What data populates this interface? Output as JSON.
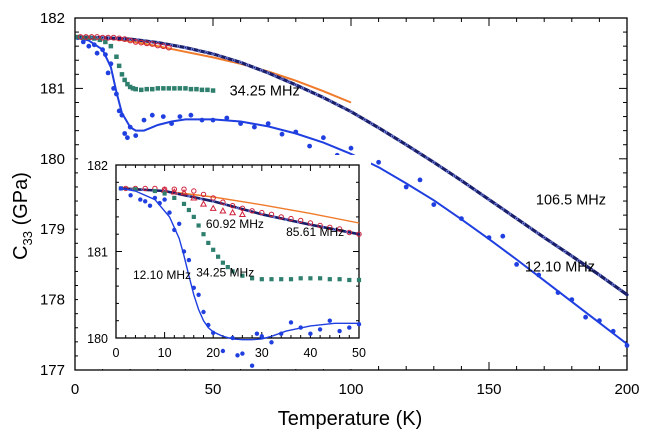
{
  "chart_data": {
    "type": "line",
    "xlabel": "Temperature (K)",
    "ylabel_main": "C",
    "ylabel_sub": "33",
    "ylabel_unit": " (GPa)",
    "xlim": [
      0,
      200
    ],
    "ylim": [
      177,
      182
    ],
    "x_ticks": [
      "0",
      "50",
      "100",
      "150",
      "200"
    ],
    "y_ticks": [
      "177",
      "178",
      "179",
      "180",
      "181",
      "182"
    ],
    "colors": {
      "fit_orange": "#f07a2a",
      "dark_navy": "#1a1f6a",
      "blue": "#1f3fe0",
      "teal": "#2e7f6e",
      "red": "#d0203a"
    },
    "annotations": [
      {
        "text": "106.5 MHz",
        "x": 167,
        "y": 179.35
      },
      {
        "text": "34.25 MHz",
        "x": 56,
        "y": 180.9
      },
      {
        "text": "12.10 MHz",
        "x": 163,
        "y": 178.4
      }
    ],
    "series": [
      {
        "name": "fit (orange)",
        "kind": "line",
        "color": "#f07a2a",
        "x": [
          1,
          10,
          20,
          30,
          40,
          50,
          60,
          70,
          80,
          90,
          100
        ],
        "y": [
          181.74,
          181.72,
          181.67,
          181.6,
          181.52,
          181.44,
          181.35,
          181.24,
          181.11,
          180.96,
          180.8
        ]
      },
      {
        "name": "106.5 MHz",
        "kind": "dense",
        "color": "#1a1f6a",
        "x": [
          1,
          10,
          20,
          30,
          40,
          50,
          60,
          70,
          80,
          90,
          100,
          110,
          120,
          130,
          140,
          150,
          160,
          170,
          180,
          190,
          200
        ],
        "y": [
          181.73,
          181.72,
          181.7,
          181.65,
          181.58,
          181.49,
          181.37,
          181.22,
          181.05,
          180.87,
          180.67,
          180.44,
          180.2,
          179.95,
          179.69,
          179.42,
          179.15,
          178.88,
          178.62,
          178.35,
          178.07
        ]
      },
      {
        "name": "12.10 MHz fit",
        "kind": "line",
        "color": "#1f3fe0",
        "x": [
          1,
          5,
          10,
          13,
          15,
          17,
          20,
          22,
          25,
          30,
          35,
          40,
          50,
          60,
          70,
          80,
          90,
          100,
          110,
          120,
          130,
          140,
          150,
          160,
          170,
          180,
          190,
          200
        ],
        "y": [
          181.72,
          181.68,
          181.55,
          181.3,
          180.95,
          180.65,
          180.45,
          180.4,
          180.4,
          180.48,
          180.53,
          180.56,
          180.56,
          180.53,
          180.46,
          180.36,
          180.23,
          180.07,
          179.88,
          179.65,
          179.41,
          179.14,
          178.86,
          178.57,
          178.27,
          177.97,
          177.67,
          177.37
        ]
      },
      {
        "name": "12.10 MHz",
        "kind": "dots",
        "color": "#1f3fe0",
        "x": [
          1,
          3,
          5,
          7,
          8,
          10,
          11,
          12,
          13,
          14,
          15,
          16,
          17,
          18,
          19,
          20,
          22,
          25,
          28,
          32,
          35,
          38,
          42,
          46,
          50,
          55,
          60,
          65,
          70,
          75,
          80,
          85,
          90,
          95,
          100,
          110,
          120,
          125,
          130,
          140,
          150,
          155,
          160,
          168,
          175,
          180,
          185,
          190,
          195,
          200
        ],
        "y": [
          181.72,
          181.66,
          181.6,
          181.62,
          181.5,
          181.55,
          181.48,
          181.22,
          181.35,
          181.0,
          180.92,
          180.68,
          180.62,
          180.36,
          180.3,
          180.45,
          180.33,
          180.55,
          180.62,
          180.6,
          180.5,
          180.6,
          180.62,
          180.55,
          180.55,
          180.58,
          180.5,
          180.45,
          180.5,
          180.35,
          180.38,
          180.18,
          180.3,
          180.05,
          180.15,
          179.95,
          179.6,
          179.7,
          179.35,
          179.15,
          178.88,
          178.9,
          178.5,
          178.35,
          178.1,
          178.0,
          177.75,
          177.7,
          177.55,
          177.35
        ]
      },
      {
        "name": "34.25 MHz",
        "kind": "squares",
        "color": "#2e7f6e",
        "x": [
          1,
          3,
          5,
          7,
          9,
          11,
          13,
          15,
          16,
          17,
          18,
          19,
          20,
          21,
          22,
          24,
          26,
          28,
          30,
          32,
          34,
          36,
          38,
          40,
          42,
          44,
          46,
          48,
          50
        ],
        "y": [
          181.73,
          181.72,
          181.72,
          181.71,
          181.69,
          181.66,
          181.6,
          181.45,
          181.32,
          181.2,
          181.12,
          181.06,
          181.02,
          181.0,
          180.99,
          180.98,
          180.99,
          180.99,
          181.0,
          181.0,
          181.0,
          181.0,
          181.0,
          181.0,
          180.99,
          180.99,
          180.98,
          180.98,
          180.97
        ]
      },
      {
        "name": "85.61 MHz",
        "kind": "open-circles",
        "color": "#d0203a",
        "x": [
          2,
          4,
          6,
          8,
          10,
          12,
          14,
          16,
          18,
          20,
          22,
          24,
          26,
          28,
          30,
          32,
          34
        ],
        "y": [
          181.73,
          181.73,
          181.73,
          181.73,
          181.72,
          181.72,
          181.72,
          181.71,
          181.7,
          181.68,
          181.66,
          181.65,
          181.64,
          181.63,
          181.61,
          181.6,
          181.58
        ]
      }
    ],
    "inset": {
      "xlim": [
        0,
        50
      ],
      "ylim": [
        180,
        182
      ],
      "x_ticks": [
        "0",
        "10",
        "20",
        "30",
        "40",
        "50"
      ],
      "y_ticks": [
        "180",
        "181",
        "182"
      ],
      "annotations": [
        {
          "text": "60.92 MHz",
          "x": 18.5,
          "y": 181.27
        },
        {
          "text": "85.61 MHz",
          "x": 35,
          "y": 181.18
        },
        {
          "text": "34.25 MHz",
          "x": 16.5,
          "y": 180.71
        },
        {
          "text": "12.10 MHz",
          "x": 3.5,
          "y": 180.68
        }
      ],
      "series": [
        {
          "name": "fit (orange)",
          "kind": "line",
          "color": "#f07a2a",
          "x": [
            1,
            10,
            20,
            30,
            40,
            50
          ],
          "y": [
            181.74,
            181.7,
            181.63,
            181.54,
            181.44,
            181.33
          ]
        },
        {
          "name": "106.5 MHz",
          "kind": "dense",
          "color": "#1a1f6a",
          "x": [
            1,
            10,
            20,
            30,
            40,
            50
          ],
          "y": [
            181.73,
            181.7,
            181.58,
            181.43,
            181.31,
            181.2
          ]
        },
        {
          "name": "85.61 MHz",
          "kind": "open-circles",
          "color": "#d0203a",
          "x": [
            2,
            4,
            6,
            8,
            10,
            12,
            14,
            16,
            18,
            20,
            22,
            24,
            26,
            28,
            30,
            32,
            34,
            36,
            38,
            40,
            42,
            44,
            46,
            48,
            50
          ],
          "y": [
            181.73,
            181.73,
            181.73,
            181.73,
            181.72,
            181.72,
            181.72,
            181.7,
            181.66,
            181.62,
            181.57,
            181.53,
            181.5,
            181.47,
            181.45,
            181.43,
            181.4,
            181.38,
            181.36,
            181.33,
            181.3,
            181.28,
            181.26,
            181.22,
            181.2
          ]
        },
        {
          "name": "60.92 MHz",
          "kind": "open-triangles",
          "color": "#d0203a",
          "x": [
            10,
            12,
            14,
            16,
            18,
            20,
            22,
            24,
            26
          ],
          "y": [
            181.71,
            181.69,
            181.68,
            181.62,
            181.55,
            181.5,
            181.47,
            181.45,
            181.43
          ]
        },
        {
          "name": "34.25 MHz",
          "kind": "squares",
          "color": "#2e7f6e",
          "x": [
            1,
            4,
            8,
            10,
            12,
            14,
            15,
            16,
            17,
            18,
            19,
            20,
            21,
            22,
            23,
            24,
            26,
            28,
            30,
            32,
            34,
            36,
            38,
            40,
            42,
            44,
            46,
            48,
            50
          ],
          "y": [
            181.73,
            181.72,
            181.7,
            181.67,
            181.62,
            181.55,
            181.48,
            181.4,
            181.3,
            181.2,
            181.1,
            181.02,
            180.94,
            180.87,
            180.82,
            180.77,
            180.72,
            180.69,
            180.68,
            180.68,
            180.68,
            180.68,
            180.69,
            180.69,
            180.69,
            180.68,
            180.68,
            180.67,
            180.67
          ]
        },
        {
          "name": "12.10 MHz fit",
          "kind": "line",
          "color": "#1f3fe0",
          "x": [
            1,
            4,
            8,
            11,
            13,
            14,
            15,
            16,
            17,
            18,
            19,
            20,
            22,
            24,
            26,
            28,
            30,
            32,
            35,
            40,
            45,
            50
          ],
          "y": [
            181.73,
            181.7,
            181.6,
            181.4,
            181.15,
            180.95,
            180.72,
            180.5,
            180.33,
            180.2,
            180.12,
            180.07,
            180.02,
            179.99,
            179.98,
            179.98,
            179.99,
            180.02,
            180.08,
            180.14,
            180.17,
            180.17
          ]
        },
        {
          "name": "12.10 MHz",
          "kind": "dots",
          "color": "#1f3fe0",
          "x": [
            1,
            3,
            5,
            6,
            7,
            8,
            9,
            10,
            11,
            12,
            13,
            14,
            15,
            16,
            17,
            18,
            19,
            20,
            22,
            24,
            25,
            26,
            28,
            29,
            30,
            32,
            34,
            36,
            38,
            40,
            42,
            44,
            46,
            48,
            50
          ],
          "y": [
            181.73,
            181.65,
            181.6,
            181.58,
            181.53,
            181.62,
            181.56,
            181.6,
            181.45,
            181.25,
            181.32,
            181.0,
            180.9,
            180.58,
            180.5,
            180.3,
            180.15,
            180.06,
            179.85,
            180.0,
            179.8,
            179.82,
            179.68,
            180.05,
            180.02,
            179.95,
            180.05,
            180.18,
            180.12,
            180.05,
            180.1,
            180.2,
            180.08,
            180.12,
            180.16
          ]
        }
      ]
    }
  }
}
